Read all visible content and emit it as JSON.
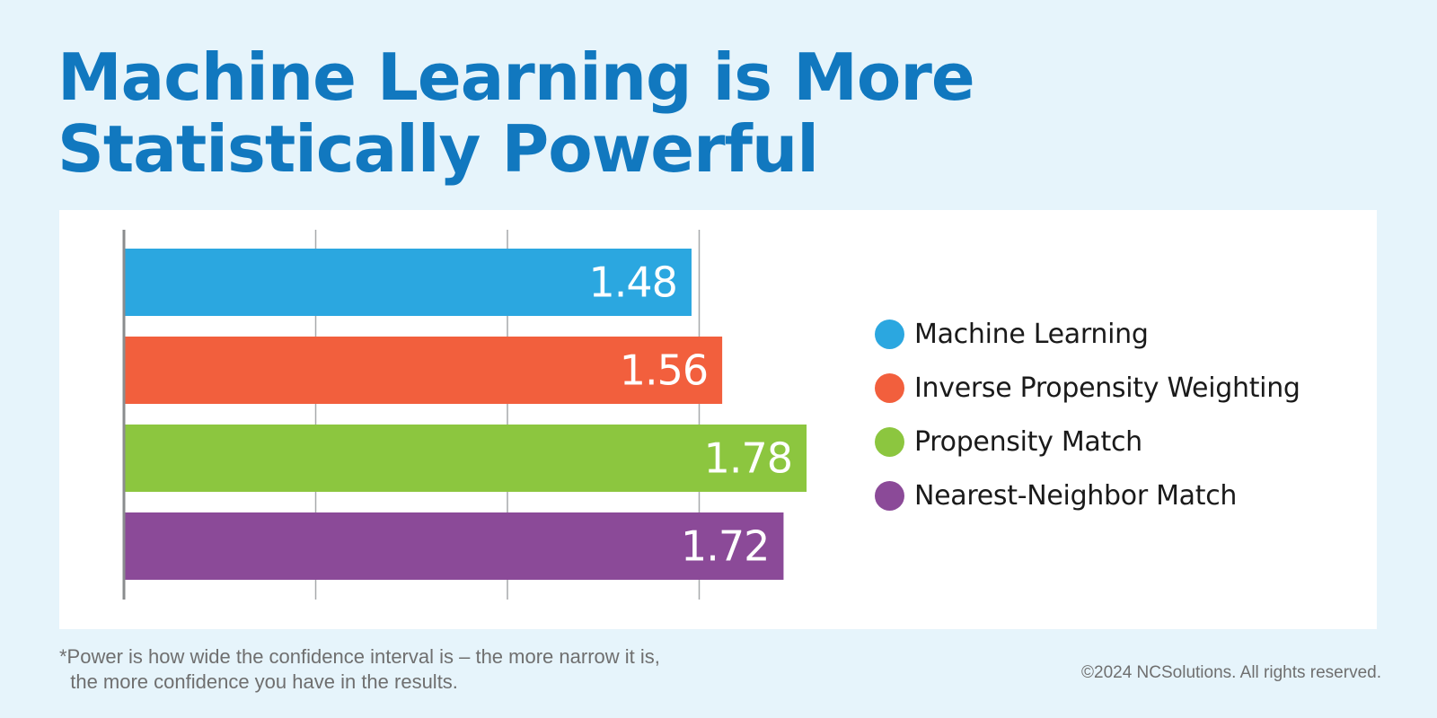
{
  "header": {
    "title_line1": "Machine Learning is More",
    "title_line2": "Statistically Powerful"
  },
  "chart_data": {
    "type": "bar",
    "orientation": "horizontal",
    "categories": [
      "Machine Learning",
      "Inverse Propensity Weighting",
      "Propensity Match",
      "Nearest-Neighbor Match"
    ],
    "values": [
      1.48,
      1.56,
      1.78,
      1.72
    ],
    "value_labels": [
      "1.48",
      "1.56",
      "1.78",
      "1.72"
    ],
    "colors": [
      "#2ba7e0",
      "#f25f3d",
      "#8cc63f",
      "#8b4a98"
    ],
    "xlim": [
      0,
      2
    ],
    "gridlines": [
      0.5,
      1.0,
      1.5
    ],
    "grid": true,
    "legend_position": "right",
    "title": "",
    "xlabel": "",
    "ylabel": ""
  },
  "footnote": {
    "line1": "*Power is how wide the confidence interval is – the more narrow it is,",
    "line2": "  the more confidence you have in the results."
  },
  "copyright": "©2024 NCSolutions. All rights reserved."
}
